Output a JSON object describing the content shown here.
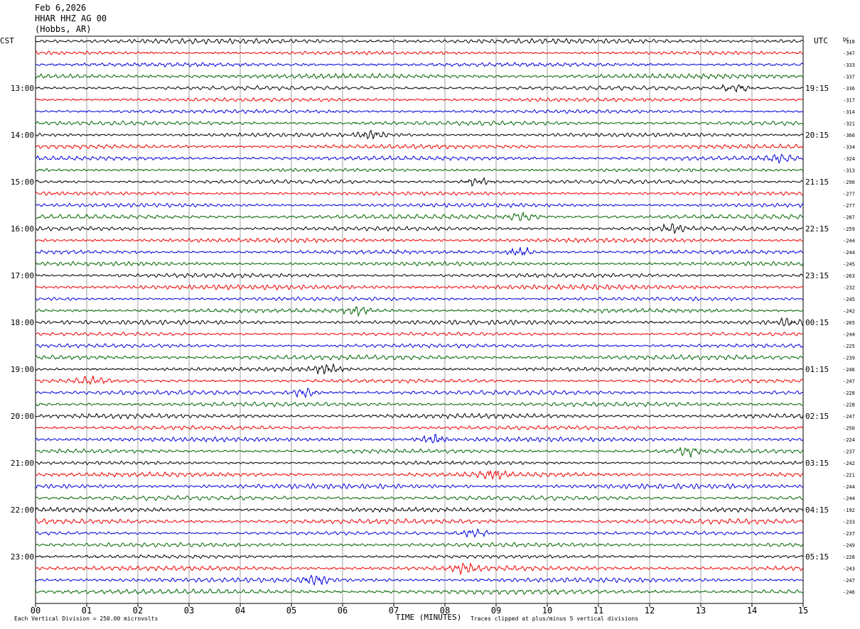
{
  "header": {
    "date": "Feb 6,2026",
    "station": "HHAR HHZ AG 00",
    "location": "(Hobbs, AR)"
  },
  "chart_data": {
    "type": "line",
    "title": "HHAR HHZ AG 00",
    "left_timezone": "CST",
    "right_timezone": "UTC",
    "dc_label": "DC",
    "xlabel": "TIME (MINUTES)",
    "xlim": [
      0,
      15
    ],
    "x_ticks": [
      "00",
      "01",
      "02",
      "03",
      "04",
      "05",
      "06",
      "07",
      "08",
      "09",
      "10",
      "11",
      "12",
      "13",
      "14",
      "15"
    ],
    "left_labels": [
      "13:00",
      "14:00",
      "15:00",
      "16:00",
      "17:00",
      "18:00",
      "19:00",
      "20:00",
      "21:00",
      "22:00",
      "23:00"
    ],
    "right_labels": [
      "19:15",
      "20:15",
      "21:15",
      "22:15",
      "23:15",
      "00:15",
      "01:15",
      "02:15",
      "03:15",
      "04:15",
      "05:15"
    ],
    "trace_colors": [
      "#000000",
      "#ee0000",
      "#0000dd",
      "#006400"
    ],
    "dc_offsets": [
      -318,
      -347,
      -333,
      -337,
      -336,
      -317,
      -314,
      -321,
      -366,
      -334,
      -324,
      -313,
      -290,
      -277,
      -277,
      -287,
      -259,
      -244,
      -244,
      -245,
      -263,
      -232,
      -245,
      -242,
      -265,
      -244,
      -225,
      -239,
      -246,
      -247,
      -228,
      -228,
      -247,
      -250,
      -224,
      -237,
      -242,
      -221,
      -244,
      -244,
      -192,
      -233,
      -237,
      -249,
      -228,
      -243,
      -247,
      -246
    ],
    "scale_note": "Each Vertical Division =  250.00 microvolts",
    "clip_note": "Traces clipped at plus/minus 5 vertical divisions",
    "grid": true
  }
}
